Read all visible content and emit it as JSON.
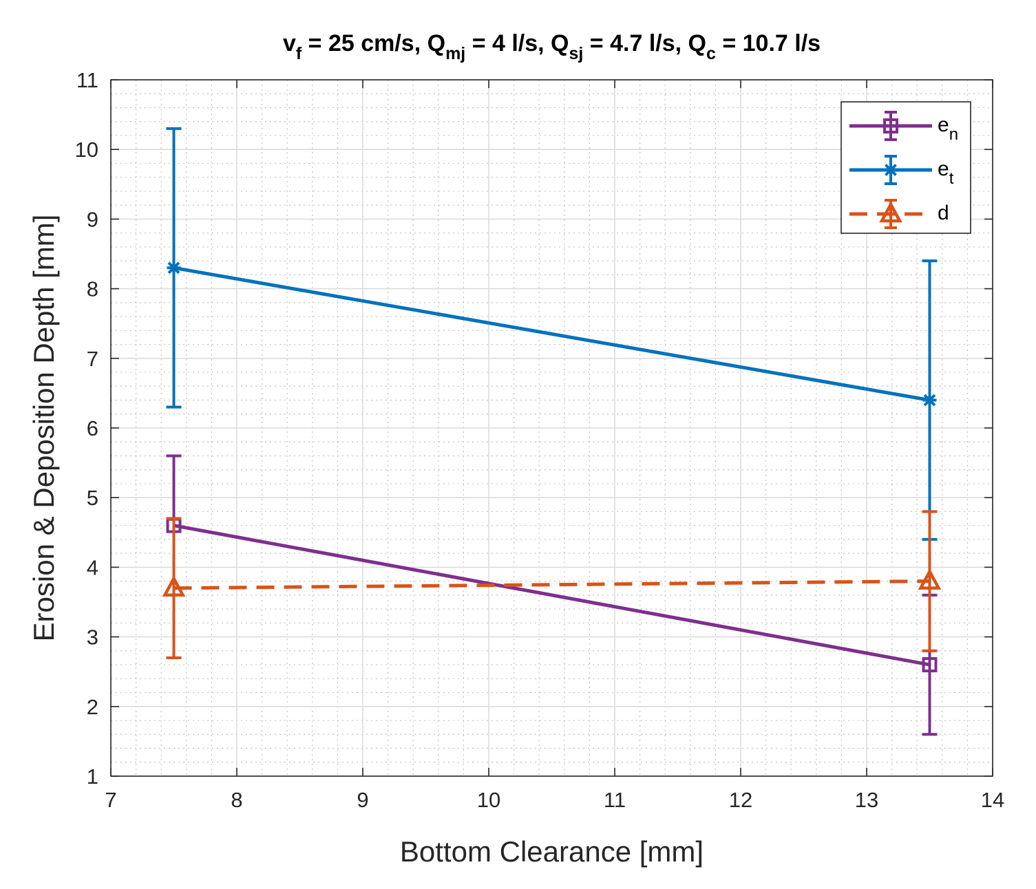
{
  "chart_data": {
    "type": "line",
    "title": {
      "parts": [
        {
          "text": "v",
          "sub": "f"
        },
        {
          "text": " = 25 cm/s, Q",
          "sub": "mj"
        },
        {
          "text": " = 4 l/s, Q",
          "sub": "sj"
        },
        {
          "text": " = 4.7 l/s, Q",
          "sub": "c"
        },
        {
          "text": " = 10.7 l/s",
          "sub": ""
        }
      ]
    },
    "xlabel": "Bottom Clearance [mm]",
    "ylabel": "Erosion & Deposition Depth [mm]",
    "xlim": [
      7,
      14
    ],
    "ylim": [
      1,
      11
    ],
    "xticks": [
      7,
      8,
      9,
      10,
      11,
      12,
      13,
      14
    ],
    "yticks": [
      1,
      2,
      3,
      4,
      5,
      6,
      7,
      8,
      9,
      10,
      11
    ],
    "grid": true,
    "minor_grid": true,
    "legend_position": "top-right",
    "series": [
      {
        "name": "e",
        "sub": "n",
        "color": "#7e2f8e",
        "marker": "square",
        "dashed": false,
        "x": [
          7.5,
          13.5
        ],
        "y": [
          4.6,
          2.6
        ],
        "err": [
          1.0,
          1.0
        ]
      },
      {
        "name": "e",
        "sub": "t",
        "color": "#0072bd",
        "marker": "asterisk",
        "dashed": false,
        "x": [
          7.5,
          13.5
        ],
        "y": [
          8.3,
          6.4
        ],
        "err": [
          2.0,
          2.0
        ]
      },
      {
        "name": "d",
        "sub": "",
        "color": "#d95319",
        "marker": "triangle",
        "dashed": true,
        "x": [
          7.5,
          13.5
        ],
        "y": [
          3.7,
          3.8
        ],
        "err": [
          1.0,
          1.0
        ]
      }
    ]
  }
}
